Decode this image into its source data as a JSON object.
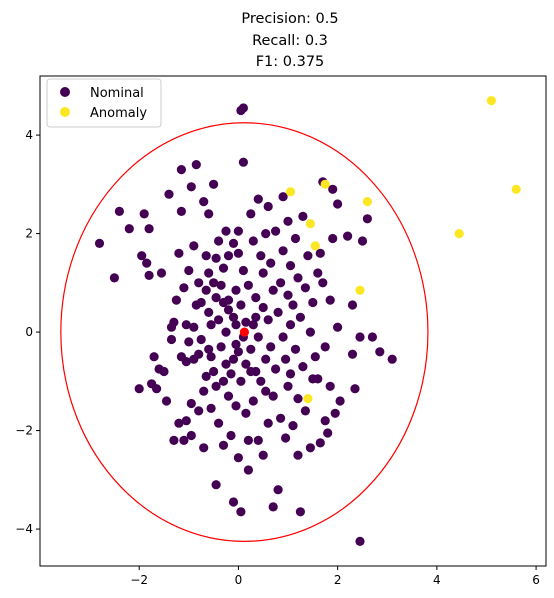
{
  "chart_data": {
    "type": "scatter",
    "title_lines": [
      "Precision: 0.5",
      "Recall: 0.3",
      "F1: 0.375"
    ],
    "xlabel": "",
    "ylabel": "",
    "xlim": [
      -4.0,
      6.2
    ],
    "ylim": [
      -4.75,
      5.2
    ],
    "xticks": [
      -2,
      0,
      2,
      4,
      6
    ],
    "yticks": [
      -4,
      -2,
      0,
      2,
      4
    ],
    "xtick_labels": [
      "−2",
      "0",
      "2",
      "4",
      "6"
    ],
    "ytick_labels": [
      "−4",
      "−2",
      "0",
      "2",
      "4"
    ],
    "grid": false,
    "legend_position": "top-left",
    "colors": {
      "nominal": "#440154",
      "anomaly": "#fde725",
      "center": "#ff0000",
      "boundary": "#ff0000"
    },
    "ellipse": {
      "center": [
        0.12,
        0.0
      ],
      "rx": 3.7,
      "ry": 4.25
    },
    "center_point": [
      0.12,
      0.0
    ],
    "series": [
      {
        "name": "Nominal",
        "points": [
          [
            -2.8,
            1.8
          ],
          [
            -2.5,
            1.1
          ],
          [
            -2.4,
            2.45
          ],
          [
            -2.2,
            2.1
          ],
          [
            -2.0,
            -1.15
          ],
          [
            -1.95,
            1.55
          ],
          [
            -1.9,
            2.4
          ],
          [
            -1.85,
            1.4
          ],
          [
            -1.8,
            2.1
          ],
          [
            -1.8,
            1.15
          ],
          [
            -1.75,
            -1.05
          ],
          [
            -1.7,
            -0.5
          ],
          [
            -1.65,
            -1.15
          ],
          [
            -1.6,
            -0.75
          ],
          [
            -1.55,
            1.2
          ],
          [
            -1.5,
            -0.8
          ],
          [
            -1.45,
            -1.4
          ],
          [
            -1.4,
            2.8
          ],
          [
            -1.35,
            0.1
          ],
          [
            -1.35,
            -0.15
          ],
          [
            -1.3,
            0.2
          ],
          [
            -1.3,
            -2.2
          ],
          [
            -1.25,
            0.65
          ],
          [
            -1.2,
            1.6
          ],
          [
            -1.2,
            -1.85
          ],
          [
            -1.15,
            3.3
          ],
          [
            -1.15,
            2.45
          ],
          [
            -1.15,
            -0.5
          ],
          [
            -1.1,
            -2.2
          ],
          [
            -1.1,
            0.9
          ],
          [
            -1.05,
            -1.8
          ],
          [
            -1.05,
            -0.6
          ],
          [
            -1.05,
            0.15
          ],
          [
            -1.0,
            1.25
          ],
          [
            -1.0,
            -0.2
          ],
          [
            -0.95,
            2.95
          ],
          [
            -0.95,
            -1.45
          ],
          [
            -0.95,
            -2.1
          ],
          [
            -0.9,
            0.1
          ],
          [
            -0.9,
            -0.55
          ],
          [
            -0.9,
            1.75
          ],
          [
            -0.85,
            3.4
          ],
          [
            -0.85,
            0.55
          ],
          [
            -0.8,
            -0.45
          ],
          [
            -0.8,
            -1.6
          ],
          [
            -0.8,
            1.0
          ],
          [
            -0.75,
            -0.15
          ],
          [
            -0.75,
            0.6
          ],
          [
            -0.7,
            2.65
          ],
          [
            -0.7,
            -2.35
          ],
          [
            -0.7,
            -1.2
          ],
          [
            -0.65,
            0.85
          ],
          [
            -0.65,
            -0.9
          ],
          [
            -0.6,
            0.4
          ],
          [
            -0.6,
            1.2
          ],
          [
            -0.6,
            -0.35
          ],
          [
            -0.6,
            2.4
          ],
          [
            -0.55,
            0.15
          ],
          [
            -0.55,
            -1.55
          ],
          [
            -0.55,
            -0.5
          ],
          [
            -0.5,
            3.0
          ],
          [
            -0.5,
            1.0
          ],
          [
            -0.5,
            -0.8
          ],
          [
            -0.45,
            1.5
          ],
          [
            -0.45,
            -1.1
          ],
          [
            -0.45,
            0.7
          ],
          [
            -0.45,
            -3.1
          ],
          [
            -0.4,
            0.25
          ],
          [
            -0.4,
            1.85
          ],
          [
            -0.4,
            -1.85
          ],
          [
            -0.35,
            0.95
          ],
          [
            -0.35,
            -0.3
          ],
          [
            -0.3,
            0.6
          ],
          [
            -0.3,
            -2.3
          ],
          [
            -0.3,
            1.3
          ],
          [
            -0.25,
            -0.65
          ],
          [
            -0.25,
            2.05
          ],
          [
            -0.25,
            0.0
          ],
          [
            -0.2,
            -1.3
          ],
          [
            -0.2,
            0.45
          ],
          [
            -0.2,
            1.55
          ],
          [
            -0.15,
            -0.85
          ],
          [
            -0.15,
            -2.1
          ],
          [
            -0.1,
            0.3
          ],
          [
            -0.1,
            -3.45
          ],
          [
            -0.1,
            1.8
          ],
          [
            -0.05,
            -0.25
          ],
          [
            -0.05,
            -1.5
          ],
          [
            -0.05,
            0.85
          ],
          [
            0.0,
            -0.4
          ],
          [
            0.0,
            -2.55
          ],
          [
            0.0,
            1.6
          ],
          [
            0.0,
            2.05
          ],
          [
            0.05,
            0.55
          ],
          [
            0.05,
            -1.0
          ],
          [
            0.05,
            -3.65
          ],
          [
            0.05,
            4.5
          ],
          [
            0.1,
            4.55
          ],
          [
            0.1,
            3.45
          ],
          [
            0.1,
            -0.1
          ],
          [
            0.1,
            1.25
          ],
          [
            0.15,
            -1.65
          ],
          [
            0.15,
            -0.65
          ],
          [
            0.2,
            0.95
          ],
          [
            0.2,
            -2.2
          ],
          [
            0.2,
            -2.8
          ],
          [
            0.25,
            2.4
          ],
          [
            0.25,
            -0.35
          ],
          [
            0.3,
            0.15
          ],
          [
            0.3,
            1.85
          ],
          [
            0.3,
            -1.4
          ],
          [
            0.35,
            -0.8
          ],
          [
            0.35,
            0.7
          ],
          [
            0.4,
            2.7
          ],
          [
            0.4,
            -2.2
          ],
          [
            0.4,
            -0.1
          ],
          [
            0.45,
            1.55
          ],
          [
            0.45,
            -1.0
          ],
          [
            0.5,
            0.5
          ],
          [
            0.5,
            -2.5
          ],
          [
            0.5,
            1.2
          ],
          [
            0.55,
            -0.55
          ],
          [
            0.55,
            2.0
          ],
          [
            0.6,
            -1.85
          ],
          [
            0.6,
            0.25
          ],
          [
            0.65,
            1.4
          ],
          [
            0.65,
            -0.3
          ],
          [
            0.7,
            -3.55
          ],
          [
            0.7,
            0.85
          ],
          [
            0.7,
            -1.3
          ],
          [
            0.75,
            2.05
          ],
          [
            0.75,
            -0.75
          ],
          [
            0.8,
            -3.2
          ],
          [
            0.8,
            0.4
          ],
          [
            0.85,
            1.0
          ],
          [
            0.85,
            -1.75
          ],
          [
            0.9,
            -0.1
          ],
          [
            0.9,
            1.65
          ],
          [
            0.9,
            2.75
          ],
          [
            0.95,
            -0.55
          ],
          [
            0.95,
            -2.15
          ],
          [
            1.0,
            0.75
          ],
          [
            1.0,
            -1.1
          ],
          [
            1.0,
            2.25
          ],
          [
            1.05,
            0.15
          ],
          [
            1.05,
            1.35
          ],
          [
            1.05,
            -0.85
          ],
          [
            1.1,
            -1.9
          ],
          [
            1.1,
            0.55
          ],
          [
            1.15,
            1.9
          ],
          [
            1.15,
            -0.35
          ],
          [
            1.2,
            -2.5
          ],
          [
            1.2,
            1.1
          ],
          [
            1.2,
            -1.35
          ],
          [
            1.25,
            0.3
          ],
          [
            1.25,
            -3.65
          ],
          [
            1.3,
            -0.7
          ],
          [
            1.3,
            2.35
          ],
          [
            1.35,
            0.9
          ],
          [
            1.35,
            -1.6
          ],
          [
            1.4,
            1.55
          ],
          [
            1.45,
            0.0
          ],
          [
            1.45,
            -2.35
          ],
          [
            1.5,
            -0.95
          ],
          [
            1.5,
            0.6
          ],
          [
            1.55,
            -0.5
          ],
          [
            1.6,
            1.2
          ],
          [
            1.65,
            -2.25
          ],
          [
            1.65,
            1.6
          ],
          [
            1.7,
            1.0
          ],
          [
            1.75,
            -0.3
          ],
          [
            1.75,
            -1.8
          ],
          [
            1.85,
            0.65
          ],
          [
            1.9,
            1.9
          ],
          [
            1.95,
            -1.65
          ],
          [
            2.0,
            2.6
          ],
          [
            2.0,
            0.1
          ],
          [
            2.05,
            -1.4
          ],
          [
            2.2,
            1.95
          ],
          [
            2.3,
            0.55
          ],
          [
            2.45,
            -0.1
          ],
          [
            2.5,
            1.85
          ],
          [
            2.7,
            -0.1
          ],
          [
            2.3,
            -0.45
          ],
          [
            2.85,
            -0.4
          ],
          [
            2.35,
            -1.15
          ],
          [
            2.45,
            -4.25
          ],
          [
            3.1,
            -0.55
          ],
          [
            2.6,
            2.3
          ],
          [
            1.7,
            3.05
          ],
          [
            1.9,
            2.9
          ],
          [
            1.6,
            -0.95
          ],
          [
            -0.1,
            -0.55
          ],
          [
            0.15,
            0.2
          ],
          [
            -0.2,
            0.65
          ],
          [
            0.35,
            0.3
          ],
          [
            -0.3,
            -1.0
          ],
          [
            0.55,
            -1.2
          ],
          [
            -0.65,
            1.55
          ],
          [
            0.6,
            2.55
          ],
          [
            1.85,
            -1.1
          ],
          [
            1.8,
            -2.05
          ],
          [
            0.25,
            -0.8
          ],
          [
            -0.05,
            0.15
          ]
        ]
      },
      {
        "name": "Anomaly",
        "points": [
          [
            5.1,
            4.7
          ],
          [
            5.6,
            2.9
          ],
          [
            4.45,
            2.0
          ],
          [
            2.6,
            2.65
          ],
          [
            1.75,
            3.0
          ],
          [
            1.05,
            2.85
          ],
          [
            1.45,
            2.2
          ],
          [
            1.55,
            1.75
          ],
          [
            2.45,
            0.85
          ],
          [
            1.4,
            -1.35
          ]
        ]
      }
    ]
  }
}
